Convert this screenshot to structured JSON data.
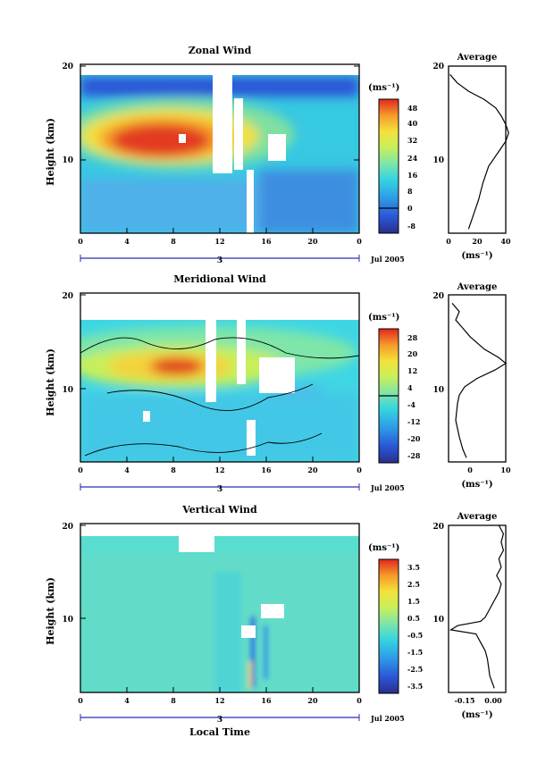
{
  "panels": [
    {
      "id": "zonal",
      "title": "Zonal Wind",
      "ylabel": "Height (km)",
      "yticks": [
        "20",
        "10"
      ],
      "xticks": [
        "0",
        "4",
        "8",
        "12",
        "16",
        "20",
        "0"
      ],
      "day_label": "3",
      "date_label": "Jul 2005",
      "xlabel": "",
      "colorbar": {
        "unit": "(ms⁻¹)",
        "labels": [
          "48",
          "40",
          "32",
          "24",
          "16",
          "8",
          "0",
          "-8"
        ],
        "min": -12,
        "max": 52
      },
      "avg": {
        "title": "Average",
        "yticks": [
          "20",
          "10"
        ],
        "xticks": [
          "0",
          "20",
          "40"
        ],
        "xunit": "(ms⁻¹)",
        "xlim": [
          0,
          40
        ]
      }
    },
    {
      "id": "meridional",
      "title": "Meridional Wind",
      "ylabel": "Height (km)",
      "yticks": [
        "20",
        "10"
      ],
      "xticks": [
        "0",
        "4",
        "8",
        "12",
        "16",
        "20",
        "0"
      ],
      "day_label": "3",
      "date_label": "Jul 2005",
      "xlabel": "",
      "colorbar": {
        "unit": "(ms⁻¹)",
        "labels": [
          "28",
          "20",
          "12",
          "4",
          "-4",
          "-12",
          "-20",
          "-28"
        ],
        "min": -32,
        "max": 32
      },
      "avg": {
        "title": "Average",
        "yticks": [
          "20",
          "10"
        ],
        "xticks": [
          "0",
          "10"
        ],
        "xunit": "(ms⁻¹)",
        "xlim": [
          -6,
          10
        ]
      }
    },
    {
      "id": "vertical",
      "title": "Vertical Wind",
      "ylabel": "Height (km)",
      "yticks": [
        "20",
        "10"
      ],
      "xticks": [
        "0",
        "4",
        "8",
        "12",
        "16",
        "20",
        "0"
      ],
      "day_label": "3",
      "date_label": "Jul 2005",
      "xlabel": "Local Time",
      "colorbar": {
        "unit": "(ms⁻¹)",
        "labels": [
          "3.5",
          "2.5",
          "1.5",
          "0.5",
          "-0.5",
          "-1.5",
          "-2.5",
          "-3.5"
        ],
        "min": -4,
        "max": 4
      },
      "avg": {
        "title": "Average",
        "yticks": [
          "20",
          "10"
        ],
        "xticks": [
          "-0.15",
          "0.00"
        ],
        "xunit": "(ms⁻¹)",
        "xlim": [
          -0.22,
          0.03
        ]
      }
    }
  ],
  "chart_data": [
    {
      "type": "heatmap",
      "title": "Zonal Wind",
      "xlabel": "",
      "ylabel": "Height (km)",
      "x_range_hours": [
        0,
        24
      ],
      "y_range_km": [
        0,
        20
      ],
      "colorbar_range": [
        -12,
        52
      ],
      "features": [
        {
          "x_hours": [
            2,
            12
          ],
          "y_km": [
            9,
            13
          ],
          "value": 48
        },
        {
          "x_hours": [
            12,
            16
          ],
          "y_km": [
            9,
            13
          ],
          "value": 30
        },
        {
          "x_hours": [
            16,
            24
          ],
          "y_km": [
            0,
            9
          ],
          "value": 12
        }
      ]
    },
    {
      "type": "line",
      "title": "Average",
      "xlabel": "(ms⁻¹)",
      "ylabel": "Height (km)",
      "xlim": [
        0,
        40
      ],
      "ylim": [
        0,
        20
      ],
      "y": [
        0.5,
        2,
        4,
        6,
        8,
        9,
        10,
        11,
        12,
        13,
        14,
        15,
        16,
        17,
        18,
        19
      ],
      "x": [
        14,
        17,
        21,
        24,
        28,
        32,
        36,
        40,
        42,
        40,
        37,
        33,
        25,
        14,
        6,
        1
      ]
    },
    {
      "type": "heatmap",
      "title": "Meridional Wind",
      "xlabel": "",
      "ylabel": "Height (km)",
      "x_range_hours": [
        0,
        24
      ],
      "y_range_km": [
        0,
        20
      ],
      "colorbar_range": [
        -32,
        32
      ],
      "features": [
        {
          "x_hours": [
            4,
            12
          ],
          "y_km": [
            9,
            13
          ],
          "value": 28
        },
        {
          "x_hours": [
            0,
            24
          ],
          "y_km": [
            0,
            8
          ],
          "value": -4
        }
      ]
    },
    {
      "type": "line",
      "title": "Average",
      "xlabel": "(ms⁻¹)",
      "ylabel": "Height (km)",
      "xlim": [
        -6,
        10
      ],
      "ylim": [
        0,
        20
      ],
      "y": [
        0.5,
        1.5,
        3,
        5,
        7,
        8,
        9,
        10,
        11,
        11.8,
        12.5,
        13.5,
        15,
        16,
        17,
        18,
        19
      ],
      "x": [
        -1,
        -2,
        -3,
        -4,
        -3.5,
        -3,
        -1.5,
        2,
        7,
        10,
        8,
        4,
        0,
        -2,
        -4,
        -3,
        -5
      ]
    },
    {
      "type": "heatmap",
      "title": "Vertical Wind",
      "xlabel": "Local Time",
      "ylabel": "Height (km)",
      "x_range_hours": [
        0,
        24
      ],
      "y_range_km": [
        0,
        20
      ],
      "colorbar_range": [
        -4,
        4
      ],
      "features": [
        {
          "x_hours": [
            13,
            16
          ],
          "y_km": [
            0,
            10
          ],
          "value": -2.5
        }
      ]
    },
    {
      "type": "line",
      "title": "Average",
      "xlabel": "(ms⁻¹)",
      "ylabel": "Height (km)",
      "xlim": [
        -0.22,
        0.03
      ],
      "ylim": [
        0,
        20
      ],
      "y": [
        0.5,
        2,
        4,
        5,
        6,
        7,
        7.5,
        8,
        8.5,
        9,
        10,
        11,
        12,
        13,
        14,
        15,
        16,
        17,
        18,
        19,
        20
      ],
      "x": [
        -0.02,
        -0.04,
        -0.05,
        -0.06,
        -0.08,
        -0.1,
        -0.21,
        -0.18,
        -0.08,
        -0.06,
        -0.04,
        -0.02,
        0.0,
        0.01,
        -0.01,
        0.01,
        0.0,
        0.02,
        0.01,
        0.02,
        0.0
      ]
    }
  ]
}
